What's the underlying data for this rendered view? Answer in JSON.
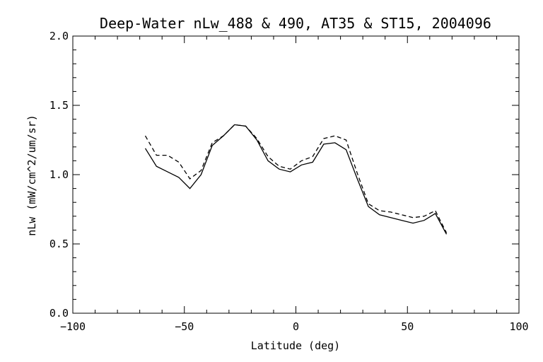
{
  "chart_data": {
    "type": "line",
    "title": "Deep-Water nLw_488 & 490, AT35 & ST15, 2004096",
    "xlabel": "Latitude (deg)",
    "ylabel": "nLw (mW/cm^2/um/sr)",
    "xlim": [
      -100,
      100
    ],
    "ylim": [
      0.0,
      2.0
    ],
    "xticks": [
      -100,
      -50,
      0,
      50,
      100
    ],
    "xtick_labels": [
      "−100",
      "−50",
      "0",
      "50",
      "100"
    ],
    "yticks": [
      0.0,
      0.5,
      1.0,
      1.5,
      2.0
    ],
    "ytick_labels": [
      "0.0",
      "0.5",
      "1.0",
      "1.5",
      "2.0"
    ],
    "grid": false,
    "series": [
      {
        "style": "solid",
        "points": [
          [
            -67.5,
            1.19
          ],
          [
            -62.5,
            1.06
          ],
          [
            -57.5,
            1.02
          ],
          [
            -52.5,
            0.98
          ],
          [
            -47.5,
            0.9
          ],
          [
            -42.5,
            1.0
          ],
          [
            -37.5,
            1.21
          ],
          [
            -32.5,
            1.28
          ],
          [
            -27.5,
            1.36
          ],
          [
            -22.5,
            1.35
          ],
          [
            -17.5,
            1.25
          ],
          [
            -12.5,
            1.1
          ],
          [
            -7.5,
            1.04
          ],
          [
            -2.5,
            1.02
          ],
          [
            2.5,
            1.07
          ],
          [
            7.5,
            1.09
          ],
          [
            12.5,
            1.22
          ],
          [
            17.5,
            1.23
          ],
          [
            22.5,
            1.18
          ],
          [
            27.5,
            0.97
          ],
          [
            32.5,
            0.77
          ],
          [
            37.5,
            0.71
          ],
          [
            42.5,
            0.69
          ],
          [
            47.5,
            0.67
          ],
          [
            52.5,
            0.65
          ],
          [
            57.5,
            0.67
          ],
          [
            62.5,
            0.72
          ],
          [
            67.5,
            0.57
          ]
        ]
      },
      {
        "style": "dashed",
        "points": [
          [
            -67.5,
            1.28
          ],
          [
            -62.5,
            1.14
          ],
          [
            -57.5,
            1.14
          ],
          [
            -52.5,
            1.09
          ],
          [
            -47.5,
            0.97
          ],
          [
            -42.5,
            1.03
          ],
          [
            -37.5,
            1.23
          ],
          [
            -32.5,
            1.28
          ],
          [
            -27.5,
            1.36
          ],
          [
            -22.5,
            1.35
          ],
          [
            -17.5,
            1.26
          ],
          [
            -12.5,
            1.13
          ],
          [
            -7.5,
            1.06
          ],
          [
            -2.5,
            1.04
          ],
          [
            2.5,
            1.1
          ],
          [
            7.5,
            1.13
          ],
          [
            12.5,
            1.26
          ],
          [
            17.5,
            1.28
          ],
          [
            22.5,
            1.25
          ],
          [
            27.5,
            1.01
          ],
          [
            32.5,
            0.79
          ],
          [
            37.5,
            0.74
          ],
          [
            42.5,
            0.73
          ],
          [
            47.5,
            0.71
          ],
          [
            52.5,
            0.69
          ],
          [
            57.5,
            0.7
          ],
          [
            62.5,
            0.74
          ],
          [
            67.5,
            0.58
          ]
        ]
      }
    ]
  }
}
